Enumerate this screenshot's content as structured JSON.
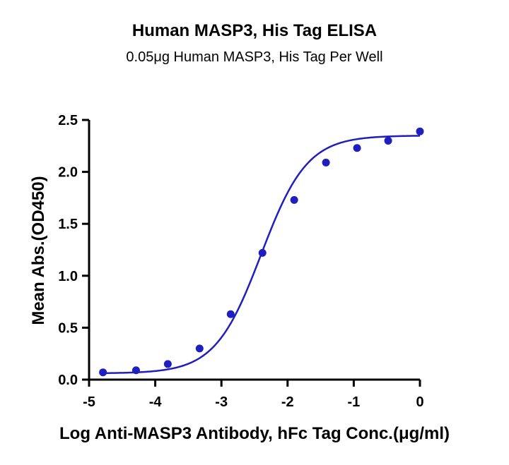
{
  "chart_data": {
    "type": "scatter",
    "title": "Human MASP3, His Tag ELISA",
    "subtitle": "0.05μg Human MASP3, His Tag Per Well",
    "xlabel": "Log Anti-MASP3 Antibody, hFc Tag Conc.(μg/ml)",
    "ylabel": "Mean Abs.(OD450)",
    "xlim": [
      -5,
      0
    ],
    "ylim": [
      0,
      2.5
    ],
    "xticks": [
      "-5",
      "-4",
      "-3",
      "-2",
      "-1",
      "0"
    ],
    "yticks": [
      "0.0",
      "0.5",
      "1.0",
      "1.5",
      "2.0",
      "2.5"
    ],
    "grid": false,
    "color": "#1f1fbf",
    "series": [
      {
        "x": [
          -4.79,
          -4.29,
          -3.81,
          -3.33,
          -2.86,
          -2.38,
          -1.9,
          -1.42,
          -0.95,
          -0.48,
          0.0
        ],
        "y": [
          0.07,
          0.09,
          0.15,
          0.3,
          0.63,
          1.22,
          1.73,
          2.09,
          2.23,
          2.3,
          2.39
        ]
      }
    ],
    "fit": {
      "type": "4PL",
      "bottom": 0.06,
      "top": 2.35,
      "logEC50": -2.4,
      "hill": 1.25
    }
  }
}
